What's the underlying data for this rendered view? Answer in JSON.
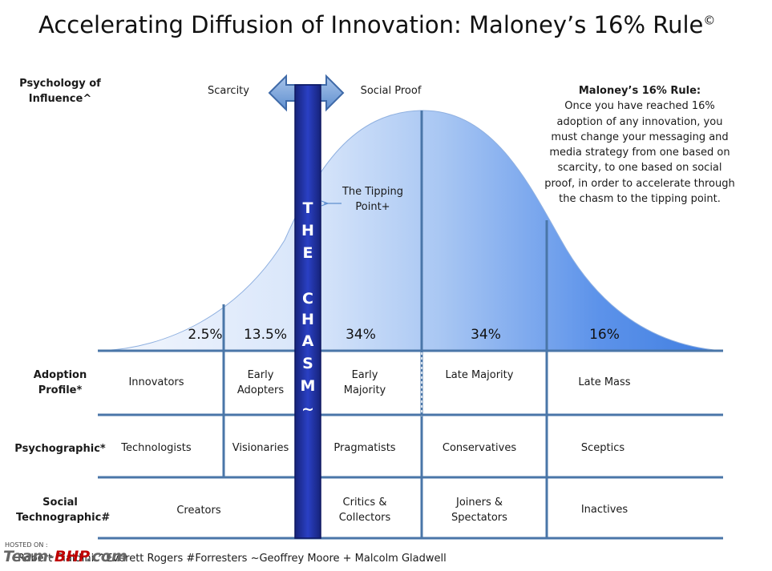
{
  "title": "Accelerating Diffusion of Innovation: Maloney’s 16% Rule",
  "title_mark": "©",
  "row_labels": {
    "psychology": "Psychology of Influence^",
    "adoption": "Adoption Profile*",
    "psychographic": "Psychographic*",
    "social": "Social Technographic#"
  },
  "influence": {
    "left": "Scarcity",
    "right": "Social Proof"
  },
  "chasm_letters": [
    "T",
    "H",
    "E",
    "C",
    "H",
    "A",
    "S",
    "M",
    "~"
  ],
  "tipping_point": "The Tipping Point+",
  "rule": {
    "heading": "Maloney’s 16% Rule:",
    "body": "Once you have reached 16% adoption of any innovation, you must change your messaging and media strategy from one based on scarcity, to one based on social proof, in order to accelerate through the chasm to the tipping point."
  },
  "chart_data": {
    "type": "area",
    "categories": [
      "Innovators",
      "Early Adopters",
      "Early Majority",
      "Late Majority",
      "Late Mass"
    ],
    "values": [
      2.5,
      13.5,
      34,
      34,
      16
    ],
    "value_labels": [
      "2.5%",
      "13.5%",
      "34%",
      "34%",
      "16%"
    ]
  },
  "adoption_profile": [
    "Innovators",
    "Early Adopters",
    "Early Majority",
    "Late Majority",
    "Late Mass"
  ],
  "psychographic": [
    "Technologists",
    "Visionaries",
    "Pragmatists",
    "Conservatives",
    "Sceptics"
  ],
  "social_technographic": [
    "Creators",
    "Critics & Collectors",
    "Joiners & Spectators",
    "Inactives"
  ],
  "footer": "Robert Cialdini ^Everett Rogers  #Forresters ~Geoffrey Moore + Malcolm Gladwell",
  "watermark": {
    "hosted": "HOSTED ON :",
    "brand_a": "Team-",
    "brand_b": "BHP",
    "brand_c": ".com"
  },
  "colors": {
    "chasm": "#1f33a8",
    "curve_light": "#eef3fc",
    "curve_dark": "#4f89e6",
    "lines": "#4a76a8"
  }
}
